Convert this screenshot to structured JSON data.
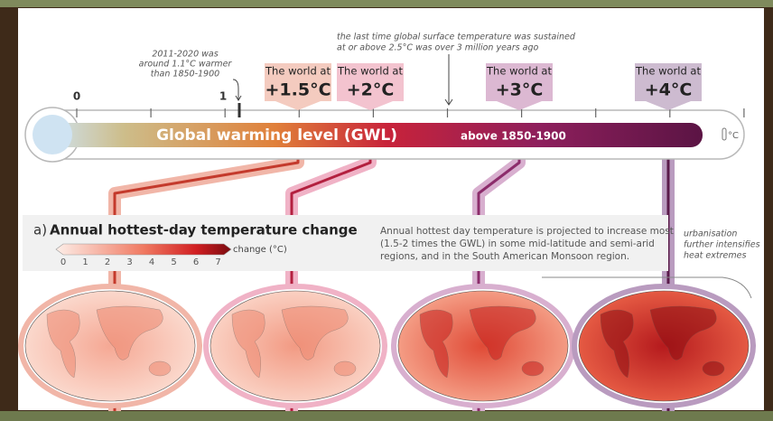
{
  "annotations": {
    "recent": [
      "2011-2020 was",
      "around 1.1°C warmer",
      "than 1850-1900"
    ],
    "paleo": [
      "the last time global surface temperature was sustained",
      "at or above 2.5°C was over 3 million years ago"
    ]
  },
  "scale": {
    "labels": [
      0,
      1
    ]
  },
  "levels": [
    {
      "prefix": "The world at",
      "label": "+1.5°C"
    },
    {
      "prefix": "The world at",
      "label": "+2°C"
    },
    {
      "prefix": "The world at",
      "label": "+3°C"
    },
    {
      "prefix": "The world at",
      "label": "+4°C"
    }
  ],
  "bar": {
    "title": "Global warming level (GWL)",
    "subtitle": "above 1850-1900",
    "unit": "°C"
  },
  "panel": {
    "letter": "a)",
    "title": "Annual hottest-day temperature change",
    "legend_ticks": [
      0,
      1,
      2,
      3,
      4,
      5,
      6,
      7
    ],
    "legend_label": "change (°C)",
    "description": [
      "Annual hottest day temperature is projected to increase most",
      "(1.5-2 times the GWL) in some mid-latitude and semi-arid",
      "regions, and in the South American Monsoon region."
    ],
    "note": [
      "urbanisation",
      "further intensifies",
      "heat extremes"
    ]
  }
}
